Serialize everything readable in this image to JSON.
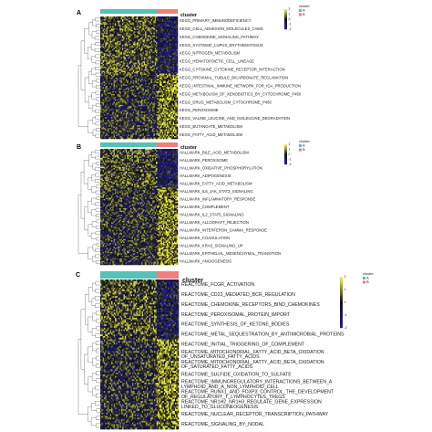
{
  "chart_data": [
    {
      "type": "heatmap",
      "panel": "A",
      "annotation_title": "cluster",
      "clusters": [
        "A",
        "B"
      ],
      "cluster_colors": {
        "A": "#55c1b8",
        "B": "#ef7f7a"
      },
      "colorbar_ticks": [
        "2",
        "1",
        "0",
        "-1",
        "-2"
      ],
      "color_scale": {
        "high": "#f2f23c",
        "mid": "#101010",
        "low": "#1c1c9c"
      },
      "rows": [
        "KEGG_PRIMARY_IMMUNODEFICIENCY",
        "KEGG_CELL_ADHESION_MOLECULES_CAMS",
        "KEGG_CHEMOKINE_SIGNALING_PATHWAY",
        "KEGG_SYSTEMIC_LUPUS_ERYTHEMATOSUS",
        "KEGG_NITROGEN_METABOLISM",
        "KEGG_HEMATOPOIETIC_CELL_LINEAGE",
        "KEGG_CYTOKINE_CYTOKINE_RECEPTOR_INTERACTION",
        "KEGG_PROXIMAL_TUBULE_BICARBONATE_RECLAMATION",
        "KEGG_INTESTINAL_IMMUNE_NETWORK_FOR_IGA_PRODUCTION",
        "KEGG_METABOLISM_OF_XENOBIOTICS_BY_CYTOCHROME_P450",
        "KEGG_DRUG_METABOLISM_CYTOCHROME_P450",
        "KEGG_PEROXISOME",
        "KEGG_VALINE_LEUCINE_AND_ISOLEUCINE_DEGRADATION",
        "KEGG_BUTANOATE_METABOLISM",
        "KEGG_FATTY_ACID_METABOLISM"
      ]
    },
    {
      "type": "heatmap",
      "panel": "B",
      "annotation_title": "cluster",
      "clusters": [
        "A",
        "B"
      ],
      "cluster_colors": {
        "A": "#55c1b8",
        "B": "#ef7f7a"
      },
      "colorbar_ticks": [
        "2",
        "1",
        "0",
        "-1",
        "-2"
      ],
      "color_scale": {
        "high": "#f2f23c",
        "mid": "#101010",
        "low": "#1c1c9c"
      },
      "rows": [
        "HALLMARK_BILE_ACID_METABOLISM",
        "HALLMARK_PEROXISOME",
        "HALLMARK_OXIDATIVE_PHOSPHORYLATION",
        "HALLMARK_ADIPOGENESIS",
        "HALLMARK_FATTY_ACID_METABOLISM",
        "HALLMARK_IL6_JAK_STAT3_SIGNALING",
        "HALLMARK_INFLAMMATORY_RESPONSE",
        "HALLMARK_COMPLEMENT",
        "HALLMARK_IL2_STAT5_SIGNALING",
        "HALLMARK_ALLOGRAFT_REJECTION",
        "HALLMARK_INTERFERON_GAMMA_RESPONSE",
        "HALLMARK_COAGULATION",
        "HALLMARK_KRAS_SIGNALING_UP",
        "HALLMARK_EPITHELIAL_MESENCHYMAL_TRANSITION",
        "HALLMARK_ANGIOGENESIS"
      ]
    },
    {
      "type": "heatmap",
      "panel": "C",
      "annotation_title": "cluster",
      "clusters": [
        "A",
        "B"
      ],
      "cluster_colors": {
        "A": "#55c1b8",
        "B": "#ef7f7a"
      },
      "colorbar_ticks": [
        "2",
        "1",
        "0",
        "-1",
        "-2"
      ],
      "color_scale": {
        "high": "#f2f23c",
        "mid": "#101010",
        "low": "#1c1c9c"
      },
      "rows": [
        "REACTOME_FCGR_ACTIVATION",
        "REACTOME_CD22_MEDIATED_BCR_REGULATION",
        "REACTOME_CHEMOKINE_RECEPTORS_BIND_CHEMOKINES",
        "REACTOME_PEROXISOMAL_PROTEIN_IMPORT",
        "REACTOME_SYNTHESIS_OF_KETONE_BODIES",
        "REACTOME_METAL_SEQUESTRATION_BY_ANTIMICROBIAL_PROTEINS",
        "REACTOME_INITIAL_TRIGGERING_OF_COMPLEMENT",
        "REACTOME_MITOCHONDRIAL_FATTY_ACID_BETA_OXIDATION\nOF_UNSATURATED_FATTY_ACIDS",
        "REACTOME_MITOCHONDRIAL_FATTY_ACID_BETA_OXIDATION\nOF_SATURATED_FATTY_ACIDS",
        "REACTOME_SULFIDE_OXIDATION_TO_SULFATE",
        "REACTOME_IMMUNOREGULATORY_INTERACTIONS_BETWEEN_A\nLYMPHOID_AND_A_NON_LYMPHOID_CELL",
        "REACTOME_RUNX1_AND_FOXP3_CONTROL_THE_DEVELOPMENT\nOF_REGULATORY_T_LYMPHOCYTES_TREGS",
        "REACTOME_NR1H2_NR1H3_REGULATE_GENE_EXPRESSION\nLINKED_TO_GLUCONEOGENESIS",
        "REACTOME_NUCLEAR_RECEPTOR_TRANSCRIPTION_PATHWAY",
        "REACTOME_SIGNALING_BY_NODAL"
      ]
    }
  ]
}
